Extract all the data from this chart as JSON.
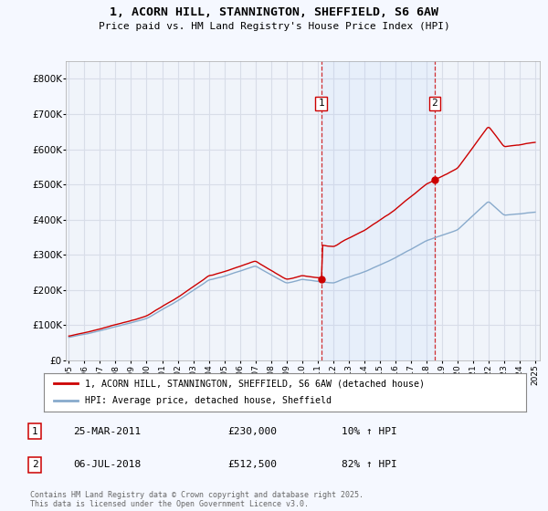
{
  "title": "1, ACORN HILL, STANNINGTON, SHEFFIELD, S6 6AW",
  "subtitle": "Price paid vs. HM Land Registry's House Price Index (HPI)",
  "background_color": "#f5f8ff",
  "plot_bg_color": "#f0f4fa",
  "grid_color": "#d8dde8",
  "transaction1": {
    "date": "25-MAR-2011",
    "price": 230000,
    "label": "1",
    "year": 2011.23
  },
  "transaction2": {
    "date": "06-JUL-2018",
    "price": 512500,
    "label": "2",
    "year": 2018.53
  },
  "legend_line1": "1, ACORN HILL, STANNINGTON, SHEFFIELD, S6 6AW (detached house)",
  "legend_line2": "HPI: Average price, detached house, Sheffield",
  "footer": "Contains HM Land Registry data © Crown copyright and database right 2025.\nThis data is licensed under the Open Government Licence v3.0.",
  "red_line_color": "#cc0000",
  "blue_line_color": "#88aacc",
  "marker_box_color": "#cc0000",
  "ylim": [
    0,
    850000
  ],
  "xlim": [
    1994.8,
    2025.3
  ],
  "yticks": [
    0,
    100000,
    200000,
    300000,
    400000,
    500000,
    600000,
    700000,
    800000
  ],
  "xticks": [
    1995,
    1996,
    1997,
    1998,
    1999,
    2000,
    2001,
    2002,
    2003,
    2004,
    2005,
    2006,
    2007,
    2008,
    2009,
    2010,
    2011,
    2012,
    2013,
    2014,
    2015,
    2016,
    2017,
    2018,
    2019,
    2020,
    2021,
    2022,
    2023,
    2024,
    2025
  ]
}
